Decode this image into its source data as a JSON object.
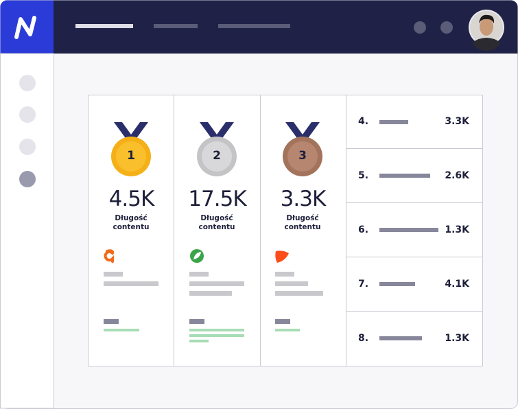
{
  "podium": [
    {
      "medal": "1",
      "value": "4.5K",
      "label": "Długość contentu"
    },
    {
      "medal": "2",
      "value": "17.5K",
      "label": "Długość contentu"
    },
    {
      "medal": "3",
      "value": "3.3K",
      "label": "Długość contentu"
    }
  ],
  "ranking": [
    {
      "rank": "4.",
      "value": "3.3K"
    },
    {
      "rank": "5.",
      "value": "2.6K"
    },
    {
      "rank": "6.",
      "value": "1.3K"
    },
    {
      "rank": "7.",
      "value": "4.1K"
    },
    {
      "rank": "8.",
      "value": "1.3K"
    }
  ]
}
